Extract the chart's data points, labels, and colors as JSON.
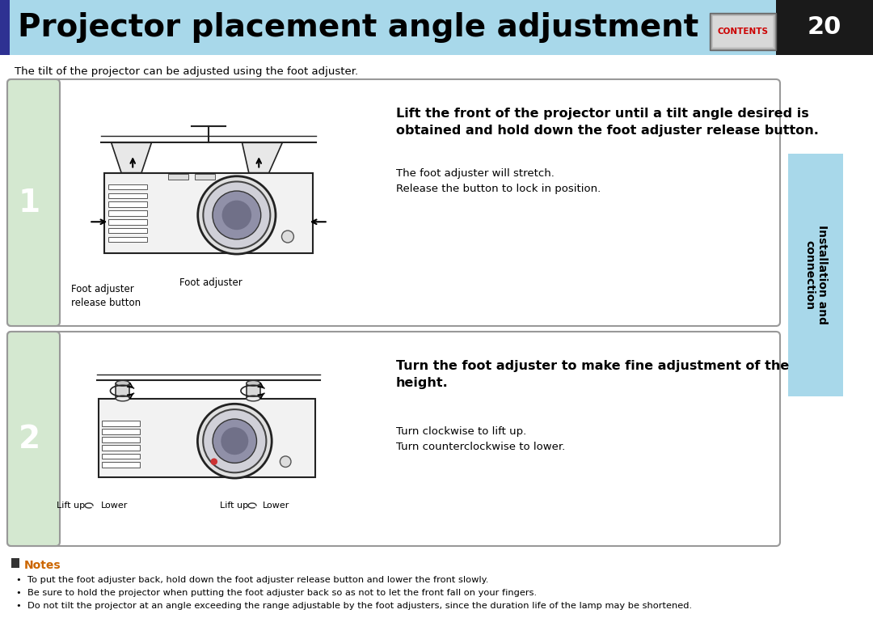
{
  "title": "Projector placement angle adjustment",
  "title_bg_color": "#a8d8ea",
  "title_bar_color": "#2e3192",
  "title_fontsize": 28,
  "page_number": "20",
  "page_num_bg": "#1a1a1a",
  "contents_label": "CONTENTS",
  "contents_bg": "#c0c0c0",
  "contents_text_color": "#cc0000",
  "side_label": "Installation and\nconnection",
  "side_bg": "#a8d8ea",
  "subtitle": "The tilt of the projector can be adjusted using the foot adjuster.",
  "step1_num": "1",
  "step1_bg": "#d4e8d0",
  "step1_title": "Lift the front of the projector until a tilt angle desired is\nobtained and hold down the foot adjuster release button.",
  "step1_line1": "The foot adjuster will stretch.",
  "step1_line2": "Release the button to lock in position.",
  "step1_label1": "Foot adjuster\nrelease button",
  "step1_label2": "Foot adjuster",
  "step2_num": "2",
  "step2_bg": "#d4e8d0",
  "step2_title": "Turn the foot adjuster to make fine adjustment of the\nheight.",
  "step2_line1": "Turn clockwise to lift up.",
  "step2_line2": "Turn counterclockwise to lower.",
  "step2_label_liftup1": "Lift up",
  "step2_label_lower1": "Lower",
  "step2_label_liftup2": "Lift up",
  "step2_label_lower2": "Lower",
  "notes_title": "Notes",
  "note1": "To put the foot adjuster back, hold down the foot adjuster release button and lower the front slowly.",
  "note2": "Be sure to hold the projector when putting the foot adjuster back so as not to let the front fall on your fingers.",
  "note3": "Do not tilt the projector at an angle exceeding the range adjustable by the foot adjusters, since the duration life of the lamp may be shortened.",
  "bg_color": "#ffffff",
  "border_color": "#888888",
  "text_color": "#000000"
}
